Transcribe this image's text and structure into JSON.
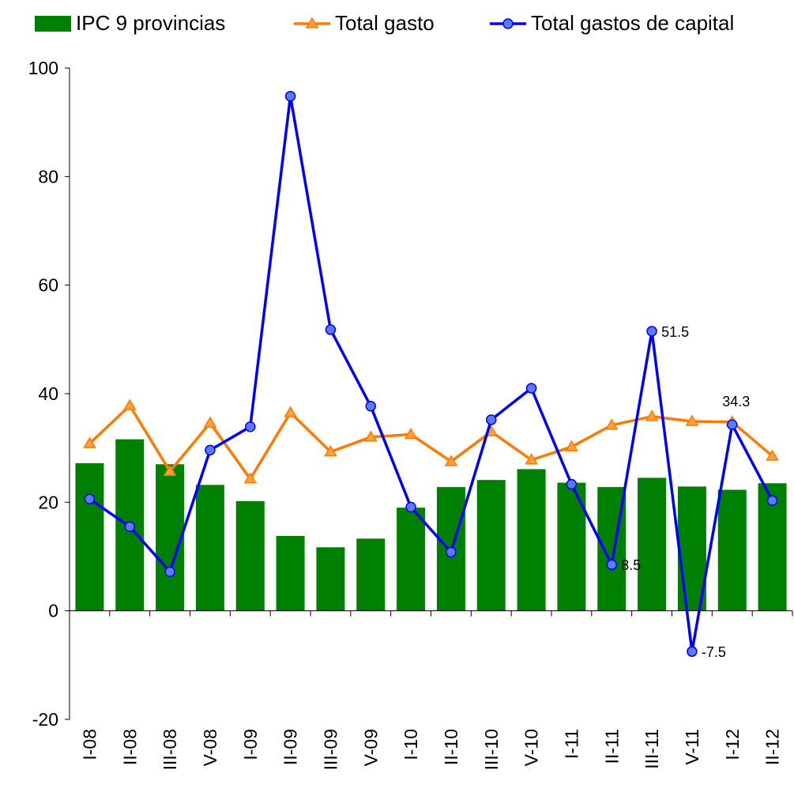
{
  "chart_data": {
    "type": "bar",
    "categories": [
      "I-08",
      "II-08",
      "III-08",
      "V-08",
      "I-09",
      "II-09",
      "III-09",
      "V-09",
      "I-10",
      "II-10",
      "III-10",
      "V-10",
      "I-11",
      "II-11",
      "III-11",
      "V-11",
      "I-12",
      "II-12"
    ],
    "series": [
      {
        "name": "IPC 9 provincias",
        "type": "bar",
        "color": "#008000",
        "values": [
          27.2,
          31.6,
          27.0,
          23.2,
          20.2,
          13.8,
          11.7,
          13.3,
          19.0,
          22.8,
          24.1,
          26.1,
          23.6,
          22.8,
          24.5,
          22.9,
          22.3,
          23.5
        ]
      },
      {
        "name": "Total gasto",
        "type": "line",
        "marker": "triangle",
        "color": "#ff7a00",
        "marker_fill": "#ffa040",
        "values": [
          30.8,
          37.8,
          25.7,
          34.6,
          24.3,
          36.5,
          29.3,
          32.0,
          32.5,
          27.5,
          33.0,
          27.8,
          30.2,
          34.2,
          35.8,
          34.9,
          34.8,
          28.5
        ]
      },
      {
        "name": "Total gastos de capital",
        "type": "line",
        "marker": "circle",
        "color": "#0000ff",
        "marker_fill": "#5a7cf0",
        "values": [
          20.6,
          15.5,
          7.2,
          29.6,
          33.9,
          94.8,
          51.8,
          37.7,
          19.1,
          10.8,
          35.2,
          41.0,
          23.3,
          8.5,
          51.5,
          -7.5,
          34.3,
          20.3
        ],
        "value_labels": [
          null,
          null,
          null,
          null,
          null,
          null,
          null,
          null,
          null,
          null,
          null,
          null,
          null,
          "8.5",
          "51.5",
          "-7.5",
          "34.3",
          null
        ]
      }
    ],
    "ylim": [
      -20,
      100
    ],
    "yticks": [
      -20,
      0,
      20,
      40,
      60,
      80,
      100
    ],
    "grid": false,
    "legend": "top"
  }
}
